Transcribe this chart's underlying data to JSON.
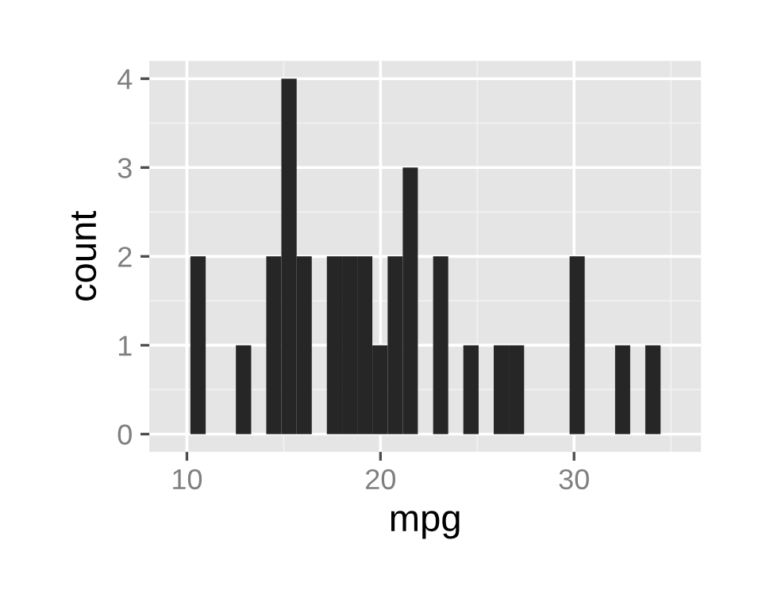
{
  "chart_data": {
    "type": "histogram",
    "xlabel": "mpg",
    "ylabel": "count",
    "bins": [
      10.18,
      10.97,
      11.75,
      12.53,
      13.32,
      14.1,
      14.88,
      15.67,
      16.45,
      17.23,
      18.02,
      18.8,
      19.58,
      20.37,
      21.15,
      21.93,
      22.72,
      23.5,
      24.28,
      25.07,
      25.85,
      26.63,
      27.42,
      28.2,
      28.98,
      29.77,
      30.55,
      31.33,
      32.12,
      32.9,
      33.68,
      34.47
    ],
    "values": [
      2,
      0,
      0,
      1,
      0,
      2,
      4,
      2,
      0,
      2,
      2,
      2,
      1,
      2,
      3,
      0,
      2,
      0,
      1,
      0,
      1,
      1,
      0,
      0,
      0,
      2,
      0,
      0,
      1,
      0,
      1
    ],
    "color": "#262626",
    "xlim": [
      8.06,
      36.56
    ],
    "xticks": [
      10,
      20,
      30
    ],
    "ylim": [
      -0.2,
      4.2
    ],
    "yticks": [
      0,
      1,
      2,
      3,
      4
    ],
    "grid": true
  }
}
